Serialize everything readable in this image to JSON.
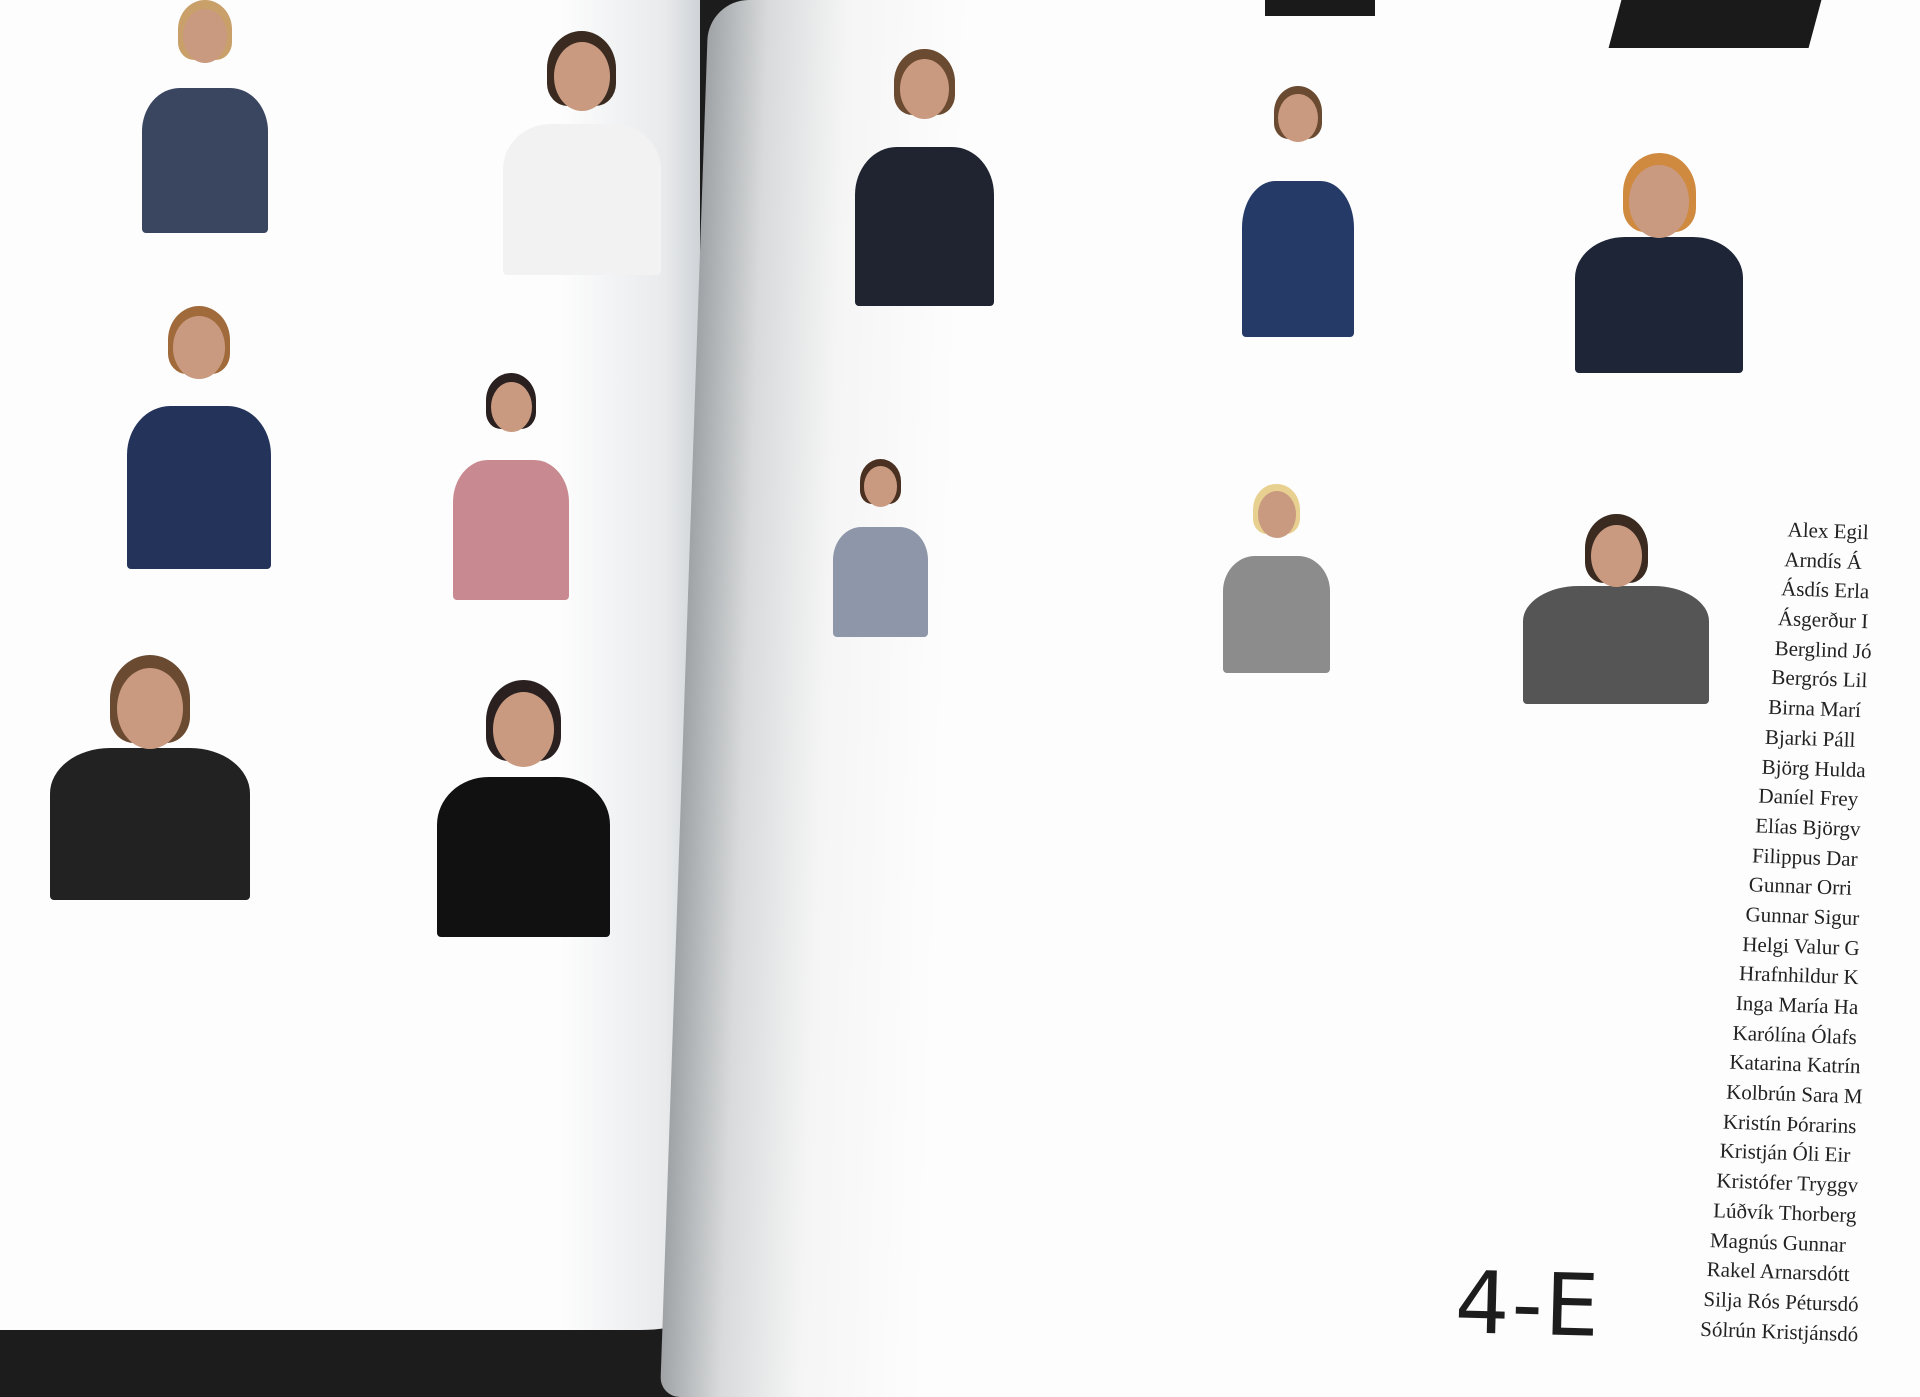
{
  "class_label": "4-E",
  "names": [
    "Alex Egil",
    "Arndís Á",
    "Ásdís Erla",
    "Ásgerður I",
    "Berglind Jó",
    "Bergrós Lil",
    "Birna Marí",
    "Bjarki Páll",
    "Björg Hulda",
    "Daníel Frey",
    "Elías Björgv",
    "Filippus Dar",
    "Gunnar Orri",
    "Gunnar Sigur",
    "Helgi Valur G",
    "Hrafnhildur K",
    "Inga María Ha",
    "Karólína Ólafs",
    "Katarina Katrín",
    "Kolbrún Sara M",
    "Kristín Þórarins",
    "Kristján Óli Eir",
    "Kristófer Tryggv",
    "Lúðvík Thorberg",
    "Magnús Gunnar",
    "Rakel Arnarsdótt",
    "Silja Rós Pétursdó",
    "Sólrún Kristjánsdó"
  ]
}
